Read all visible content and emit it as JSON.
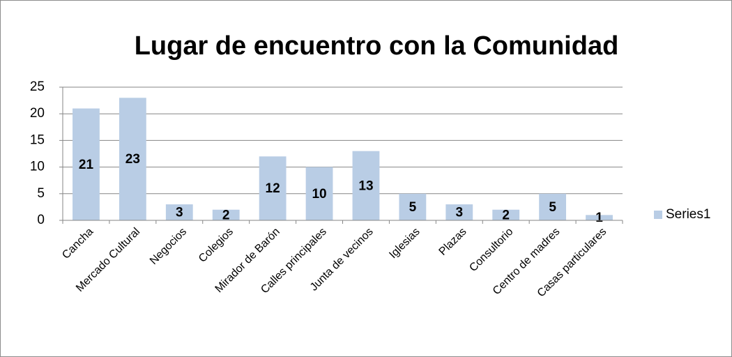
{
  "chart_data": {
    "type": "bar",
    "title": "Lugar de encuentro con la Comunidad",
    "categories": [
      "Cancha",
      "Mercado Cultural",
      "Negocios",
      "Colegios",
      "Mirador de Barón",
      "Calles principales",
      "Junta de vecinos",
      "Iglesias",
      "Plazas",
      "Consultorio",
      "Centro de madres",
      "Casas particulares"
    ],
    "series": [
      {
        "name": "Series1",
        "color": "#b9cde5",
        "values": [
          21,
          23,
          3,
          2,
          12,
          10,
          13,
          5,
          3,
          2,
          5,
          1
        ]
      }
    ],
    "ylim": [
      0,
      25
    ],
    "yticks": [
      0,
      5,
      10,
      15,
      20,
      25
    ],
    "grid": true,
    "legend": "right",
    "data_labels": true
  }
}
